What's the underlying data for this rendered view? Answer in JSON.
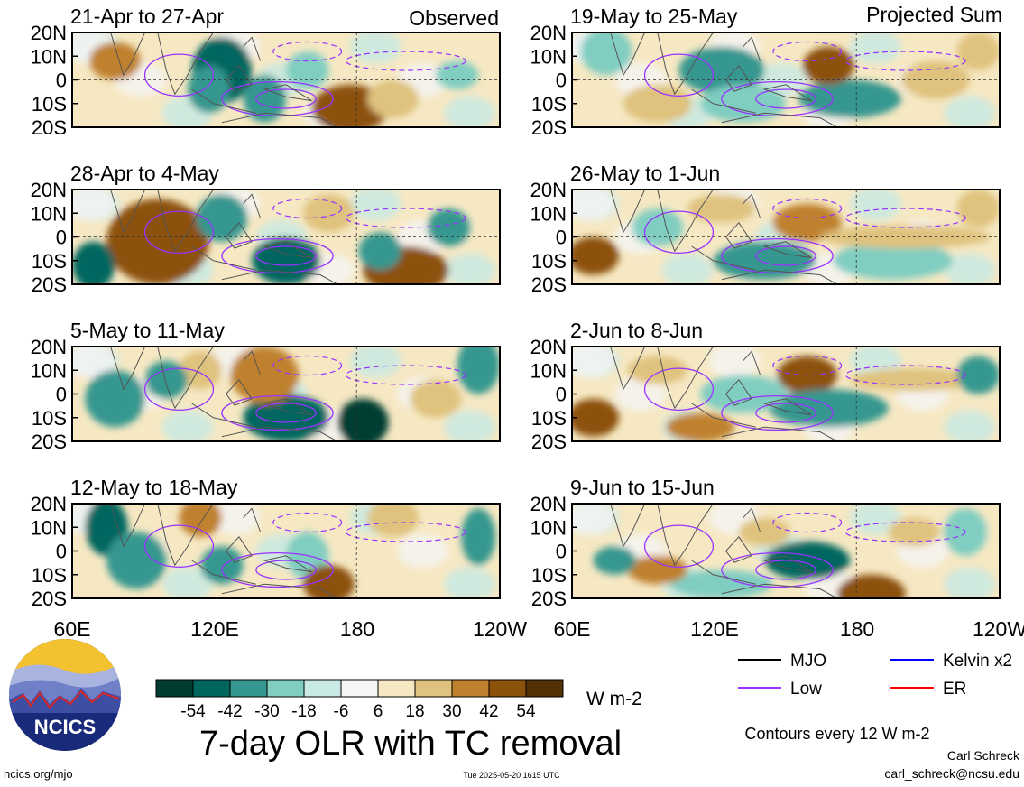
{
  "figure": {
    "title": "7-day OLR with TC removal",
    "units": "W m-2",
    "contour_note": "Contours every 12 W m-2",
    "credit_name": "Carl Schreck",
    "credit_email": "carl_schreck@ncsu.edu",
    "url": "ncics.org/mjo",
    "timestamp": "Tue 2025-05-20 1615 UTC",
    "logo_text": "NCICS"
  },
  "headers": {
    "left": "Observed",
    "right": "Projected Sum"
  },
  "panels_left": [
    {
      "label": "21-Apr to 27-Apr"
    },
    {
      "label": "28-Apr to 4-May"
    },
    {
      "label": "5-May to 11-May"
    },
    {
      "label": "12-May to 18-May"
    }
  ],
  "panels_right": [
    {
      "label": "19-May to 25-May"
    },
    {
      "label": "26-May to 1-Jun"
    },
    {
      "label": "2-Jun to 8-Jun"
    },
    {
      "label": "9-Jun to 15-Jun"
    }
  ],
  "lat_ticks": [
    "20N",
    "10N",
    "0",
    "10S",
    "20S"
  ],
  "lon_ticks": [
    "60E",
    "120E",
    "180",
    "120W"
  ],
  "colorbar": {
    "tick_labels": [
      "-54",
      "-42",
      "-30",
      "-18",
      "-6",
      "6",
      "18",
      "30",
      "42",
      "54"
    ],
    "colors": [
      "#003c30",
      "#01665e",
      "#35978f",
      "#80cdc1",
      "#c7eae5",
      "#f5f5f5",
      "#f6e8c3",
      "#dfc27d",
      "#bf812d",
      "#8c510a",
      "#543005"
    ]
  },
  "contour_legend": [
    {
      "label": "MJO",
      "color": "#000000"
    },
    {
      "label": "Kelvin x2",
      "color": "#0000ff"
    },
    {
      "label": "Low",
      "color": "#9933ff"
    },
    {
      "label": "ER",
      "color": "#ff0000"
    }
  ]
}
